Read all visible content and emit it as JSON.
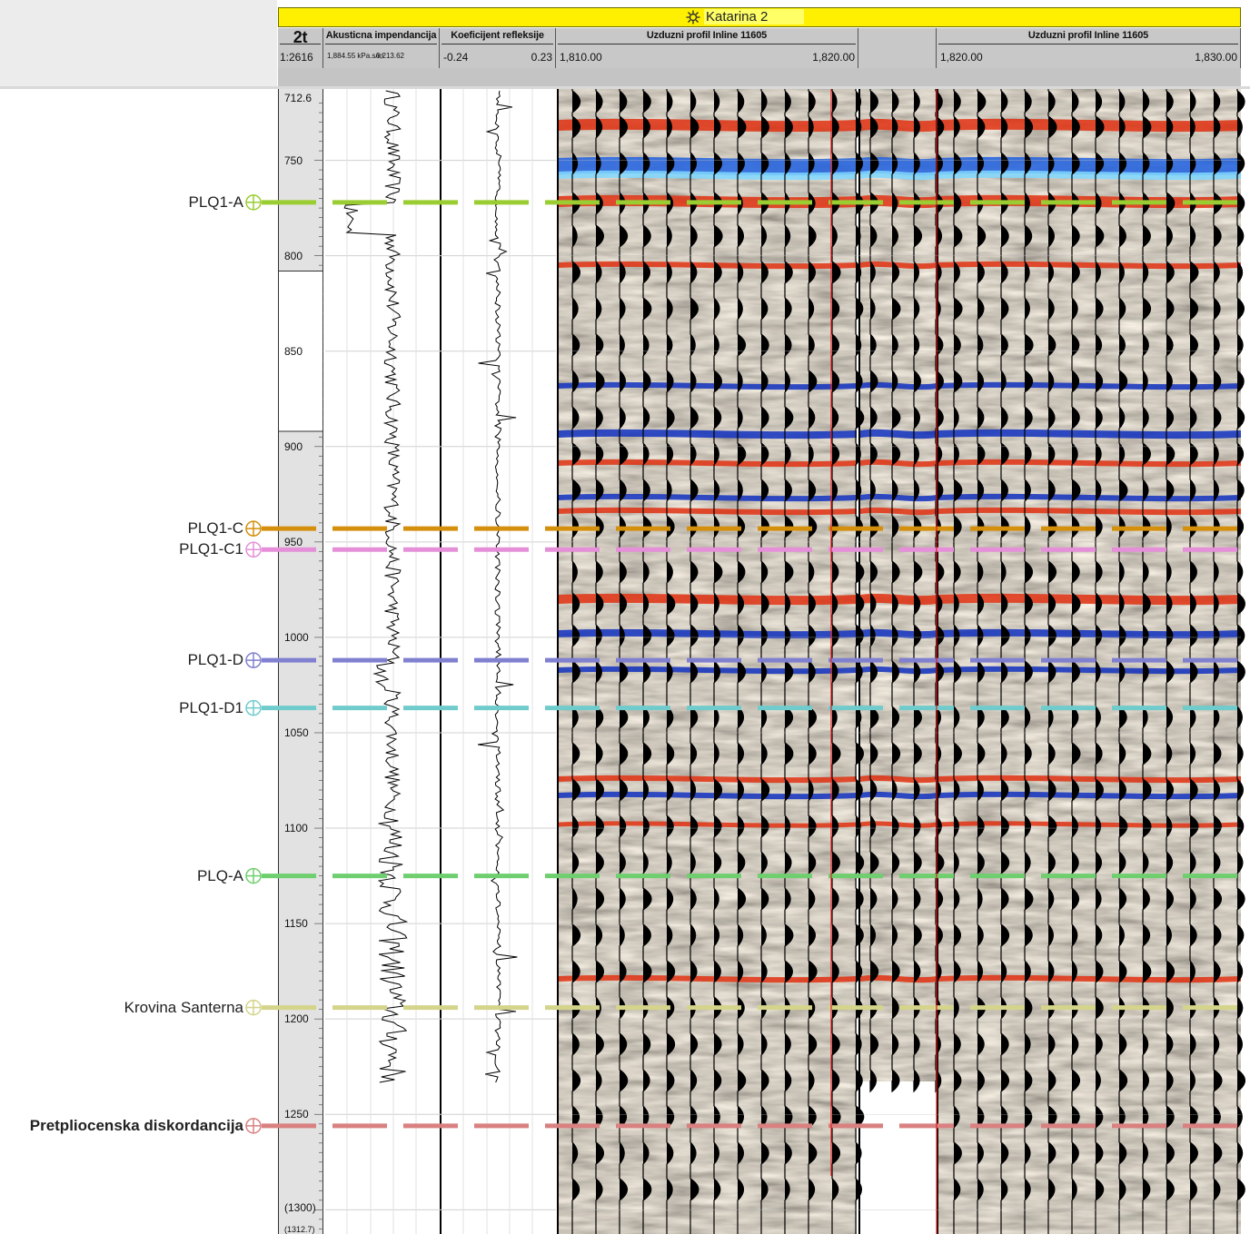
{
  "well": {
    "name": "Katarina 2",
    "icon": "well-symbol-icon"
  },
  "tracks": {
    "scale": {
      "label": "2t",
      "ratio": "1:2616"
    },
    "impedance": {
      "label": "Akusticna impendancija",
      "min": "1,884.55 kPa.s/m",
      "max": "6,213.62"
    },
    "reflectivity": {
      "label": "Koeficijent refleksije",
      "min": "-0.24",
      "max": "0.23"
    },
    "seismic_left": {
      "label": "Uzduzni profil Inline 11605",
      "min": "1,810.00",
      "max": "1,820.00"
    },
    "seismic_right": {
      "label": "Uzduzni profil Inline 11605",
      "min": "1,820.00",
      "max": "1,830.00"
    }
  },
  "depth_ticks": [
    "712.6",
    "750",
    "800",
    "850",
    "900",
    "950",
    "1000",
    "1050",
    "1100",
    "1150",
    "1200",
    "1250",
    "(1300)",
    "(1312.7)"
  ],
  "depth_values": [
    712.6,
    750,
    800,
    850,
    900,
    950,
    1000,
    1050,
    1100,
    1150,
    1200,
    1250,
    1300,
    1312.7
  ],
  "horizons": [
    {
      "name": "PLQ1-A",
      "depth": 772,
      "color": "#9acd32",
      "bold": false
    },
    {
      "name": "PLQ1-C",
      "depth": 943,
      "color": "#d4900c",
      "bold": false
    },
    {
      "name": "PLQ1-C1",
      "depth": 954,
      "color": "#e58fd8",
      "bold": false
    },
    {
      "name": "PLQ1-D",
      "depth": 1012,
      "color": "#8080d0",
      "bold": false
    },
    {
      "name": "PLQ1-D1",
      "depth": 1037,
      "color": "#70cccc",
      "bold": false
    },
    {
      "name": "PLQ-A",
      "depth": 1125,
      "color": "#6fcf6f",
      "bold": false
    },
    {
      "name": "Krovina Santerna",
      "depth": 1194,
      "color": "#d4d48a",
      "bold": false
    },
    {
      "name": "Pretpliocenska diskordancija",
      "depth": 1256,
      "color": "#d98080",
      "bold": true
    }
  ],
  "colors": {
    "title_bar": "#ffef00",
    "header": "#c8c8c8",
    "red_line": "#e02020"
  }
}
